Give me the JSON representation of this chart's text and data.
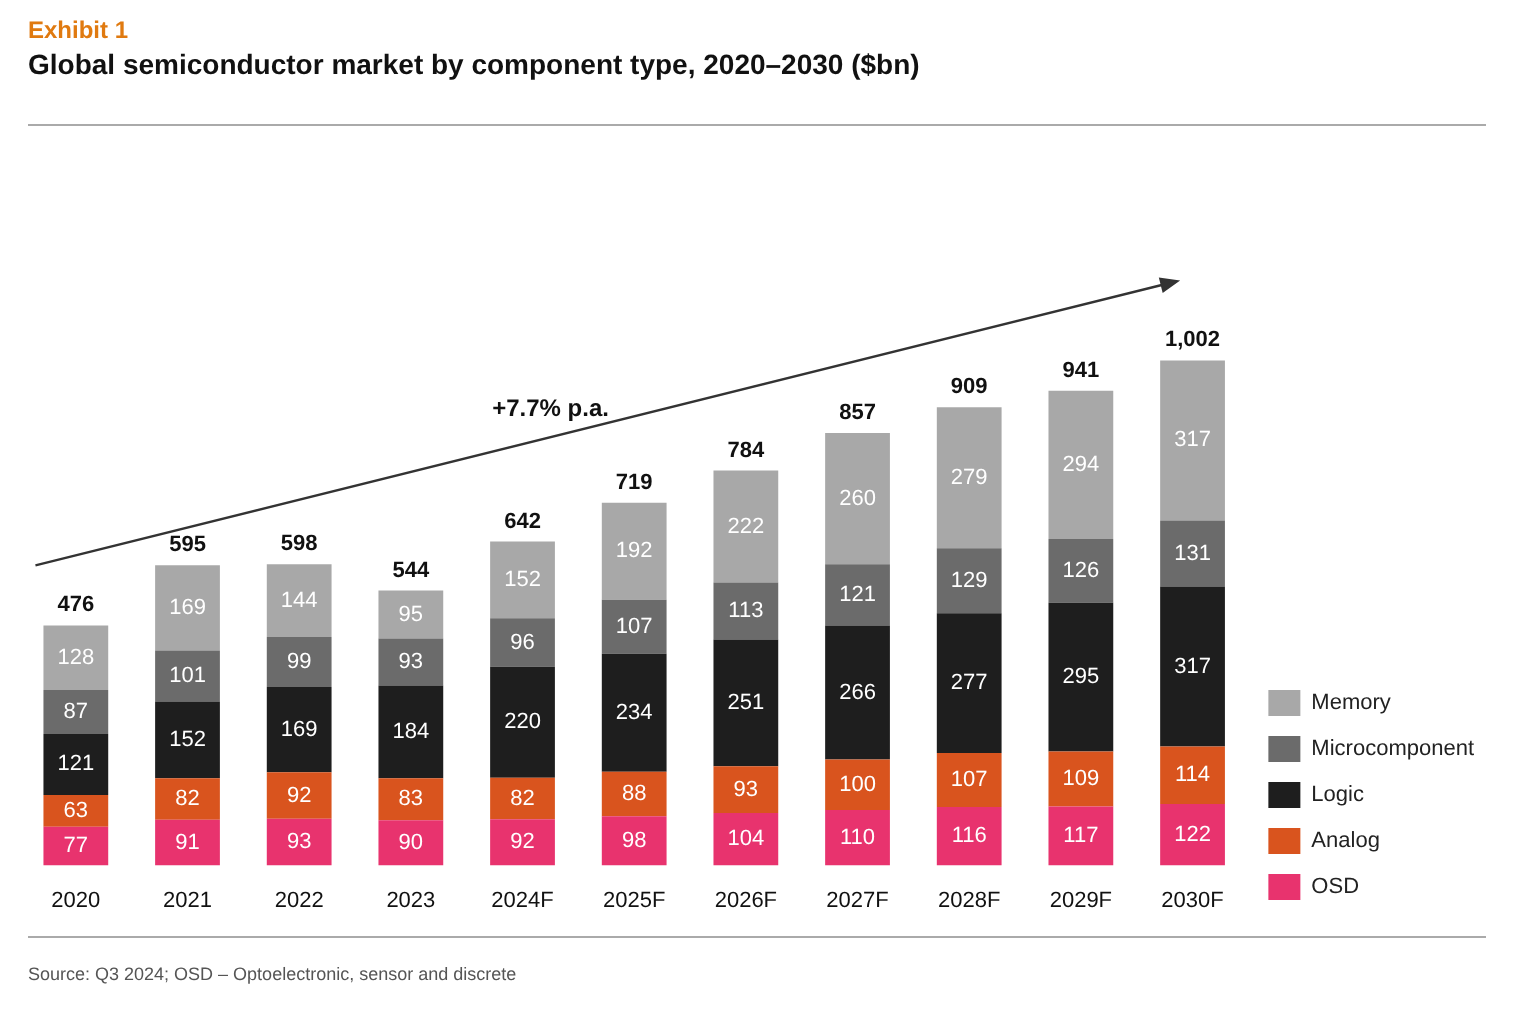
{
  "chart_data": {
    "type": "bar",
    "subtitle": "Exhibit 1",
    "title": "Global semiconductor market by component type, 2020–2030 ($bn)",
    "categories": [
      "2020",
      "2021",
      "2022",
      "2023",
      "2024F",
      "2025F",
      "2026F",
      "2027F",
      "2028F",
      "2029F",
      "2030F"
    ],
    "stacked": true,
    "data_labels": true,
    "legend": "bottom right",
    "series": [
      {
        "name": "OSD",
        "color": "#e8336e",
        "values": [
          77,
          91,
          93,
          90,
          92,
          98,
          104,
          110,
          116,
          117,
          122
        ]
      },
      {
        "name": "Analog",
        "color": "#d9541e",
        "values": [
          63,
          82,
          92,
          83,
          82,
          88,
          93,
          100,
          107,
          109,
          114
        ]
      },
      {
        "name": "Logic",
        "color": "#1e1e1e",
        "values": [
          121,
          152,
          169,
          184,
          220,
          234,
          251,
          266,
          277,
          295,
          317
        ]
      },
      {
        "name": "Microcomponent",
        "color": "#6b6b6b",
        "values": [
          87,
          101,
          99,
          93,
          96,
          107,
          113,
          121,
          129,
          126,
          131
        ]
      },
      {
        "name": "Memory",
        "color": "#a8a8a8",
        "values": [
          128,
          169,
          144,
          95,
          152,
          192,
          222,
          260,
          279,
          294,
          317
        ]
      }
    ],
    "totals": [
      "476",
      "595",
      "598",
      "544",
      "642",
      "719",
      "784",
      "857",
      "909",
      "941",
      "1,002"
    ],
    "annotations": [
      "+7.7% p.a.",
      "Source: Q3 2024; OSD – Optoelectronic, sensor and discrete"
    ]
  }
}
